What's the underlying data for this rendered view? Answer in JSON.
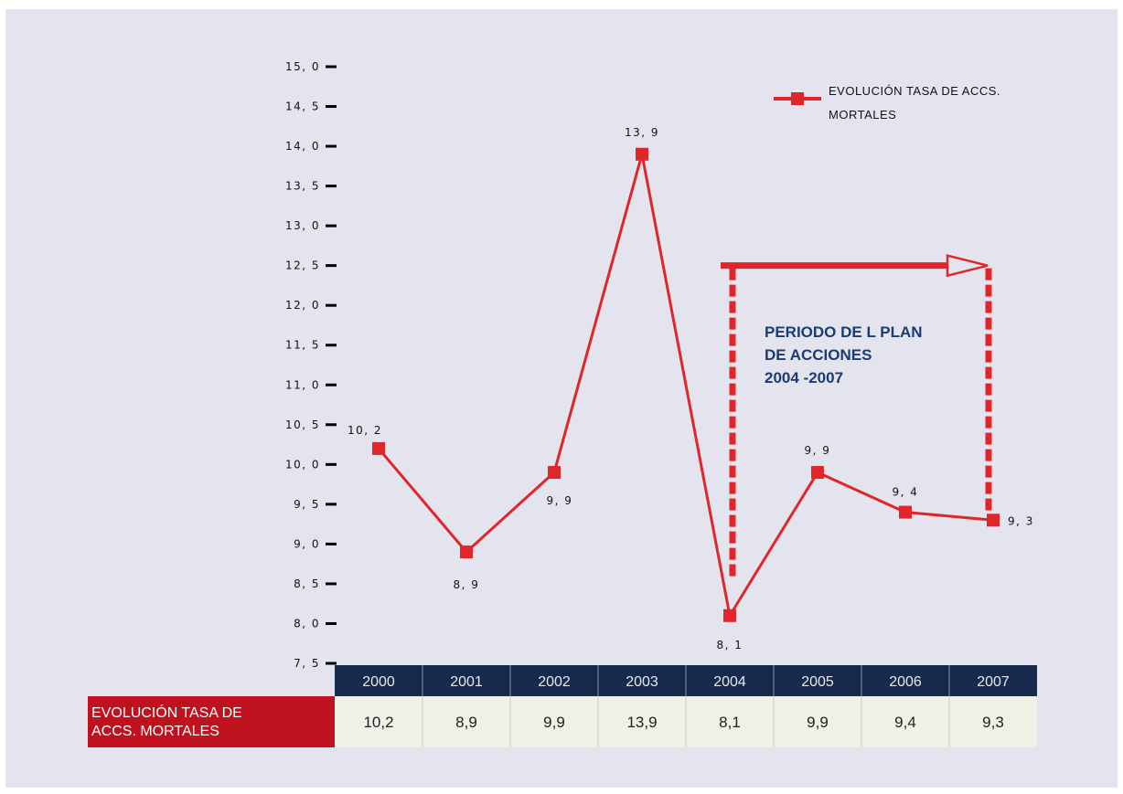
{
  "chart_data": {
    "type": "line",
    "title": "",
    "xlabel": "",
    "ylabel": "",
    "categories": [
      "2000",
      "2001",
      "2002",
      "2003",
      "2004",
      "2005",
      "2006",
      "2007"
    ],
    "series": [
      {
        "name": "EVOLUCIÓN TASA DE ACCS. MORTALES",
        "values": [
          10.2,
          8.9,
          9.9,
          13.9,
          8.1,
          9.9,
          9.4,
          9.3
        ],
        "color": "#e0262b"
      }
    ],
    "ylim": [
      7.5,
      15.0
    ],
    "yticks": [
      "7, 5",
      "8, 0",
      "8, 5",
      "9, 0",
      "9, 5",
      "10, 0",
      "10, 5",
      "11, 0",
      "11, 5",
      "12, 0",
      "12, 5",
      "13, 0",
      "13, 5",
      "14, 0",
      "14, 5",
      "15, 0"
    ],
    "data_labels": [
      "10, 2",
      "8, 9",
      "9, 9",
      "13, 9",
      "8, 1",
      "9, 9",
      "9, 4",
      "9, 3"
    ],
    "legend": {
      "lines": [
        "EVOLUCIÓN TASA DE ACCS.",
        "MORTALES"
      ],
      "placement": "top-right"
    },
    "annotation": {
      "lines": [
        "PERIODO DE L  PLAN",
        "DE ACCIONES",
        "2004 -2007"
      ],
      "start_category": "2004",
      "end_category": "2007",
      "level": 12.5,
      "color": "#e0262b",
      "text_color": "#1a3b73"
    },
    "table": {
      "row_label_lines": [
        "EVOLUCIÓN TASA DE",
        "ACCS. MORTALES"
      ],
      "values": [
        "10,2",
        "8,9",
        "9,9",
        "13,9",
        "8,1",
        "9,9",
        "9,4",
        "9,3"
      ],
      "header_color": "#172a4d",
      "row_label_color": "#c0111f",
      "value_bg_color": "#f1f0e6"
    },
    "grid": false
  }
}
